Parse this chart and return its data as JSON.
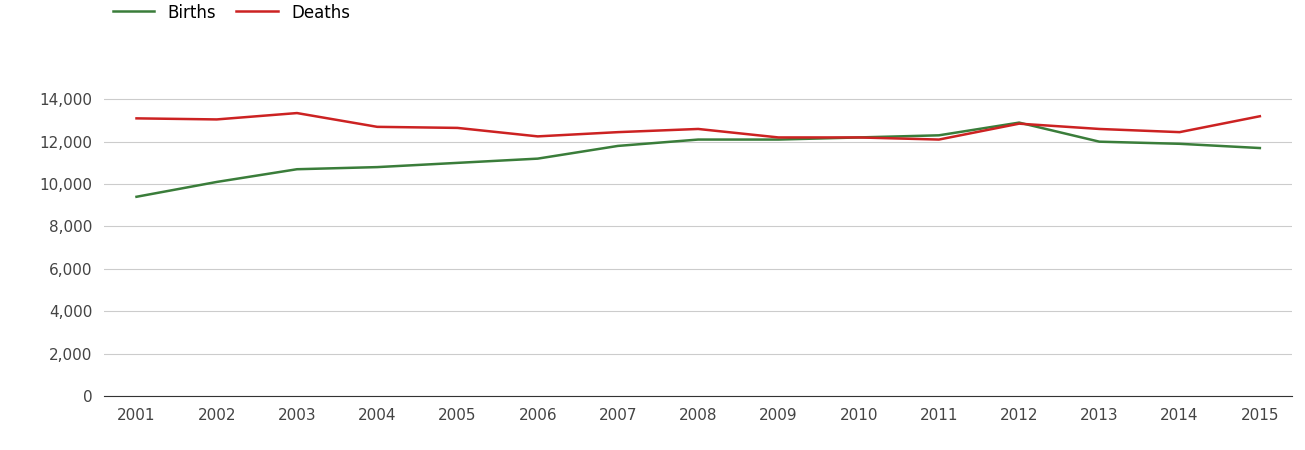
{
  "years": [
    2001,
    2002,
    2003,
    2004,
    2005,
    2006,
    2007,
    2008,
    2009,
    2010,
    2011,
    2012,
    2013,
    2014,
    2015
  ],
  "births": [
    9400,
    10100,
    10700,
    10800,
    11000,
    11200,
    11800,
    12100,
    12100,
    12200,
    12300,
    12900,
    12000,
    11900,
    11700
  ],
  "deaths": [
    13100,
    13050,
    13350,
    12700,
    12650,
    12250,
    12450,
    12600,
    12200,
    12200,
    12100,
    12850,
    12600,
    12450,
    13200
  ],
  "births_color": "#3a7d3a",
  "deaths_color": "#cc2222",
  "background_color": "#ffffff",
  "grid_color": "#cccccc",
  "ylim": [
    0,
    15500
  ],
  "yticks": [
    0,
    2000,
    4000,
    6000,
    8000,
    10000,
    12000,
    14000
  ],
  "legend_labels": [
    "Births",
    "Deaths"
  ],
  "line_width": 1.8,
  "tick_fontsize": 11,
  "legend_fontsize": 12
}
